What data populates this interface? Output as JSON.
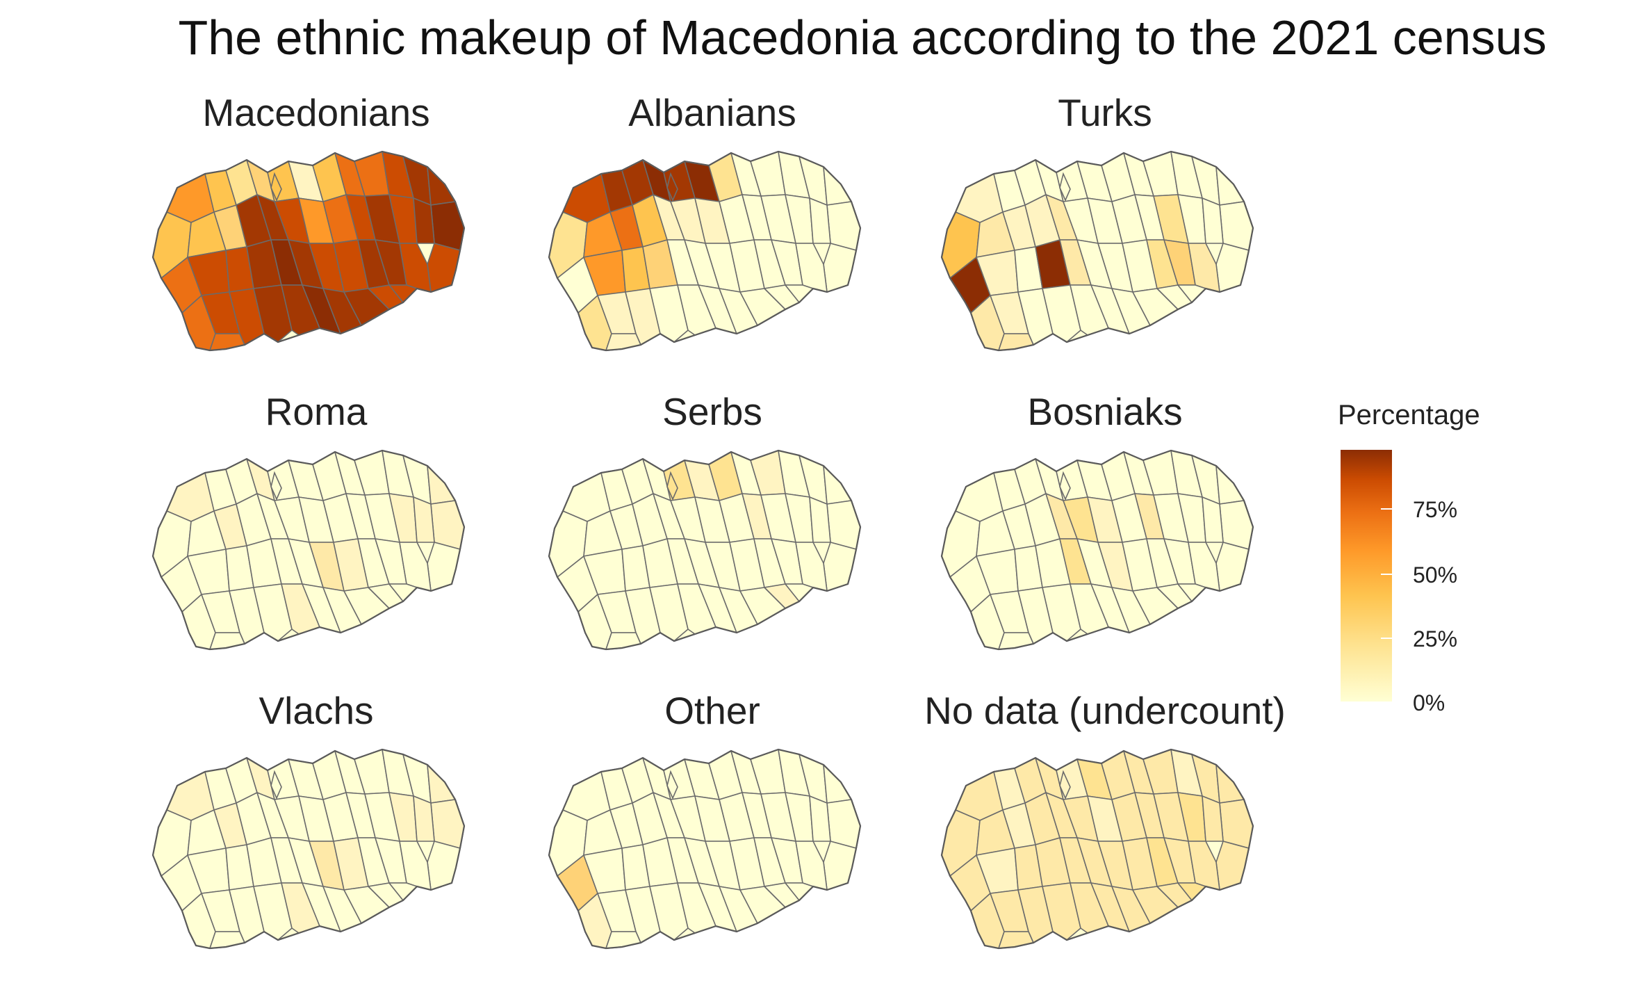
{
  "title": "The ethnic makeup of Macedonia according to the 2021 census",
  "panels": [
    {
      "name": "Macedonians",
      "palette": "high"
    },
    {
      "name": "Albanians",
      "palette": "mixed-west"
    },
    {
      "name": "Turks",
      "palette": "low-spots"
    },
    {
      "name": "Roma",
      "palette": "very-low"
    },
    {
      "name": "Serbs",
      "palette": "very-low-north"
    },
    {
      "name": "Bosniaks",
      "palette": "very-low-center"
    },
    {
      "name": "Vlachs",
      "palette": "very-low"
    },
    {
      "name": "Other",
      "palette": "very-low-west"
    },
    {
      "name": "No data (undercount)",
      "palette": "low-uniform"
    }
  ],
  "legend": {
    "title": "Percentage",
    "ticks": [
      "75%",
      "50%",
      "25%",
      "0%"
    ],
    "colors": [
      "#ffffd4",
      "#fee391",
      "#fec44f",
      "#fe9929",
      "#ec7014",
      "#cc4c02",
      "#8c2d04"
    ]
  }
}
